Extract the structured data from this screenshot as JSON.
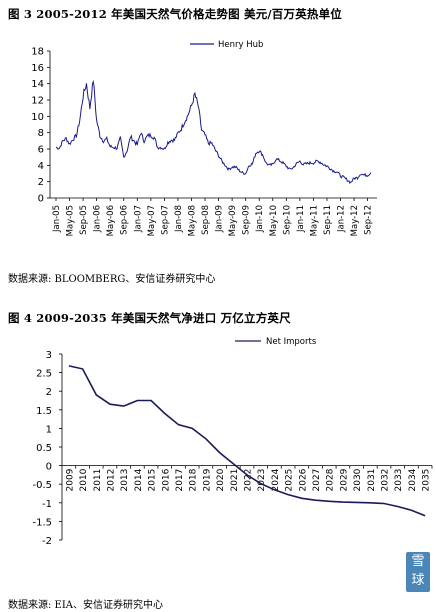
{
  "figure1": {
    "title": "图 3  2005-2012 年美国天然气价格走势图   美元/百万英热单位",
    "source": "数据来源: BLOOMBERG、安信证券研究中心"
  },
  "figure2": {
    "title": "图 4  2009-2035 年美国天然气净进口   万亿立方英尺",
    "source": "数据来源: EIA、安信证券研究中心"
  },
  "watermark": {
    "text": "雪球"
  },
  "chart_data": [
    {
      "type": "line",
      "title": "2005-2012 年美国天然气价格走势图",
      "ylabel": "美元/百万英热单位",
      "ylim": [
        0,
        18
      ],
      "yticks": [
        0,
        2,
        4,
        6,
        8,
        10,
        12,
        14,
        16,
        18
      ],
      "xticks": [
        "Jan-05",
        "May-05",
        "Sep-05",
        "Jan-06",
        "May-06",
        "Sep-06",
        "Jan-07",
        "May-07",
        "Sep-07",
        "Jan-08",
        "May-08",
        "Sep-08",
        "Jan-09",
        "May-09",
        "Sep-09",
        "Jan-10",
        "May-10",
        "Sep-10",
        "Jan-11",
        "May-11",
        "Sep-11",
        "Jan-12",
        "May-12",
        "Sep-12"
      ],
      "legend_position": "top-right",
      "color": "#1a1a8a",
      "series": [
        {
          "name": "Henry Hub",
          "x": [
            "Jan-05",
            "Feb-05",
            "Mar-05",
            "Apr-05",
            "May-05",
            "Jun-05",
            "Jul-05",
            "Aug-05",
            "Sep-05",
            "Oct-05",
            "Nov-05",
            "Dec-05",
            "Jan-06",
            "Feb-06",
            "Mar-06",
            "Apr-06",
            "May-06",
            "Jun-06",
            "Jul-06",
            "Aug-06",
            "Sep-06",
            "Oct-06",
            "Nov-06",
            "Dec-06",
            "Jan-07",
            "Feb-07",
            "Mar-07",
            "Apr-07",
            "May-07",
            "Jun-07",
            "Jul-07",
            "Aug-07",
            "Sep-07",
            "Oct-07",
            "Nov-07",
            "Dec-07",
            "Jan-08",
            "Feb-08",
            "Mar-08",
            "Apr-08",
            "May-08",
            "Jun-08",
            "Jul-08",
            "Aug-08",
            "Sep-08",
            "Oct-08",
            "Nov-08",
            "Dec-08",
            "Jan-09",
            "Feb-09",
            "Mar-09",
            "Apr-09",
            "May-09",
            "Jun-09",
            "Jul-09",
            "Aug-09",
            "Sep-09",
            "Oct-09",
            "Nov-09",
            "Dec-09",
            "Jan-10",
            "Feb-10",
            "Mar-10",
            "Apr-10",
            "May-10",
            "Jun-10",
            "Jul-10",
            "Aug-10",
            "Sep-10",
            "Oct-10",
            "Nov-10",
            "Dec-10",
            "Jan-11",
            "Feb-11",
            "Mar-11",
            "Apr-11",
            "May-11",
            "Jun-11",
            "Jul-11",
            "Aug-11",
            "Sep-11",
            "Oct-11",
            "Nov-11",
            "Dec-11",
            "Jan-12",
            "Feb-12",
            "Mar-12",
            "Apr-12",
            "May-12",
            "Jun-12",
            "Jul-12",
            "Aug-12",
            "Sep-12",
            "Oct-12"
          ],
          "values": [
            6.2,
            6.1,
            7.0,
            7.3,
            6.6,
            7.2,
            7.6,
            9.5,
            12.5,
            14.0,
            11.0,
            14.5,
            9.5,
            7.6,
            7.0,
            7.2,
            6.3,
            6.2,
            6.1,
            7.3,
            5.0,
            5.8,
            7.5,
            7.0,
            6.5,
            8.0,
            7.0,
            7.6,
            7.7,
            7.4,
            6.2,
            6.2,
            6.0,
            6.8,
            7.1,
            7.1,
            7.9,
            8.5,
            9.4,
            10.2,
            11.3,
            12.7,
            11.2,
            8.3,
            7.7,
            6.7,
            6.7,
            5.9,
            5.2,
            4.5,
            4.0,
            3.5,
            3.8,
            3.8,
            3.4,
            3.1,
            3.0,
            4.0,
            4.2,
            5.5,
            5.8,
            5.3,
            4.3,
            4.0,
            4.1,
            4.8,
            4.6,
            4.3,
            3.9,
            3.5,
            3.7,
            4.2,
            4.5,
            4.1,
            4.2,
            4.3,
            4.3,
            4.5,
            4.4,
            4.1,
            3.9,
            3.6,
            3.3,
            3.2,
            2.7,
            2.5,
            2.2,
            1.9,
            2.4,
            2.5,
            3.0,
            2.8,
            2.8,
            3.1
          ]
        }
      ]
    },
    {
      "type": "line",
      "title": "2009-2035 年美国天然气净进口",
      "ylabel": "万亿立方英尺",
      "ylim": [
        -2,
        3
      ],
      "yticks": [
        -2,
        -1.5,
        -1,
        -0.5,
        0,
        0.5,
        1,
        1.5,
        2,
        2.5,
        3
      ],
      "legend_position": "top-right",
      "color": "#1a1a5a",
      "categories": [
        "2009",
        "2010",
        "2011",
        "2012",
        "2013",
        "2014",
        "2015",
        "2016",
        "2017",
        "2018",
        "2019",
        "2020",
        "2021",
        "2022",
        "2023",
        "2024",
        "2025",
        "2026",
        "2027",
        "2028",
        "2029",
        "2030",
        "2031",
        "2032",
        "2033",
        "2034",
        "2035"
      ],
      "series": [
        {
          "name": "Net Imports",
          "values": [
            2.68,
            2.6,
            1.9,
            1.65,
            1.6,
            1.75,
            1.75,
            1.4,
            1.1,
            1.0,
            0.72,
            0.35,
            0.05,
            -0.25,
            -0.48,
            -0.65,
            -0.78,
            -0.88,
            -0.93,
            -0.96,
            -0.98,
            -0.99,
            -1.0,
            -1.02,
            -1.1,
            -1.2,
            -1.35
          ]
        }
      ]
    }
  ]
}
